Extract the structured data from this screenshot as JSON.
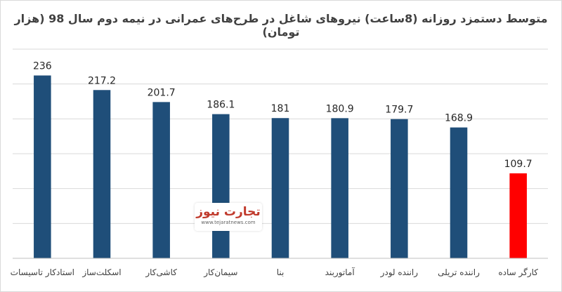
{
  "chart_data": {
    "type": "bar",
    "title": "متوسط دستمزد روزانه (8ساعت) نیروهای شاغل در طرح‌های عمرانی در نیمه دوم سال 98 (هزار تومان)",
    "categories": [
      "استادکار تاسیسات",
      "اسکلت‌ساز",
      "کاشی‌کار",
      "سیمان‌کار",
      "بنا",
      "آماتوربند",
      "راننده لودر",
      "راننده تریلی",
      "کارگر ساده"
    ],
    "values": [
      236,
      217.2,
      201.7,
      186.1,
      181,
      180.9,
      179.7,
      168.9,
      109.7
    ],
    "value_labels": [
      "236",
      "217.2",
      "201.7",
      "186.1",
      "181",
      "180.9",
      "179.7",
      "168.9",
      "109.7"
    ],
    "colors": [
      "#1f4e79",
      "#1f4e79",
      "#1f4e79",
      "#1f4e79",
      "#1f4e79",
      "#1f4e79",
      "#1f4e79",
      "#1f4e79",
      "#ff0000"
    ],
    "ylim": [
      0,
      270
    ],
    "gridline_step": 45,
    "grid": true,
    "xlabel": "",
    "ylabel": ""
  },
  "watermark": {
    "logo_text": "تجارت نیوز",
    "url_text": "www.tejaratnews.com"
  }
}
